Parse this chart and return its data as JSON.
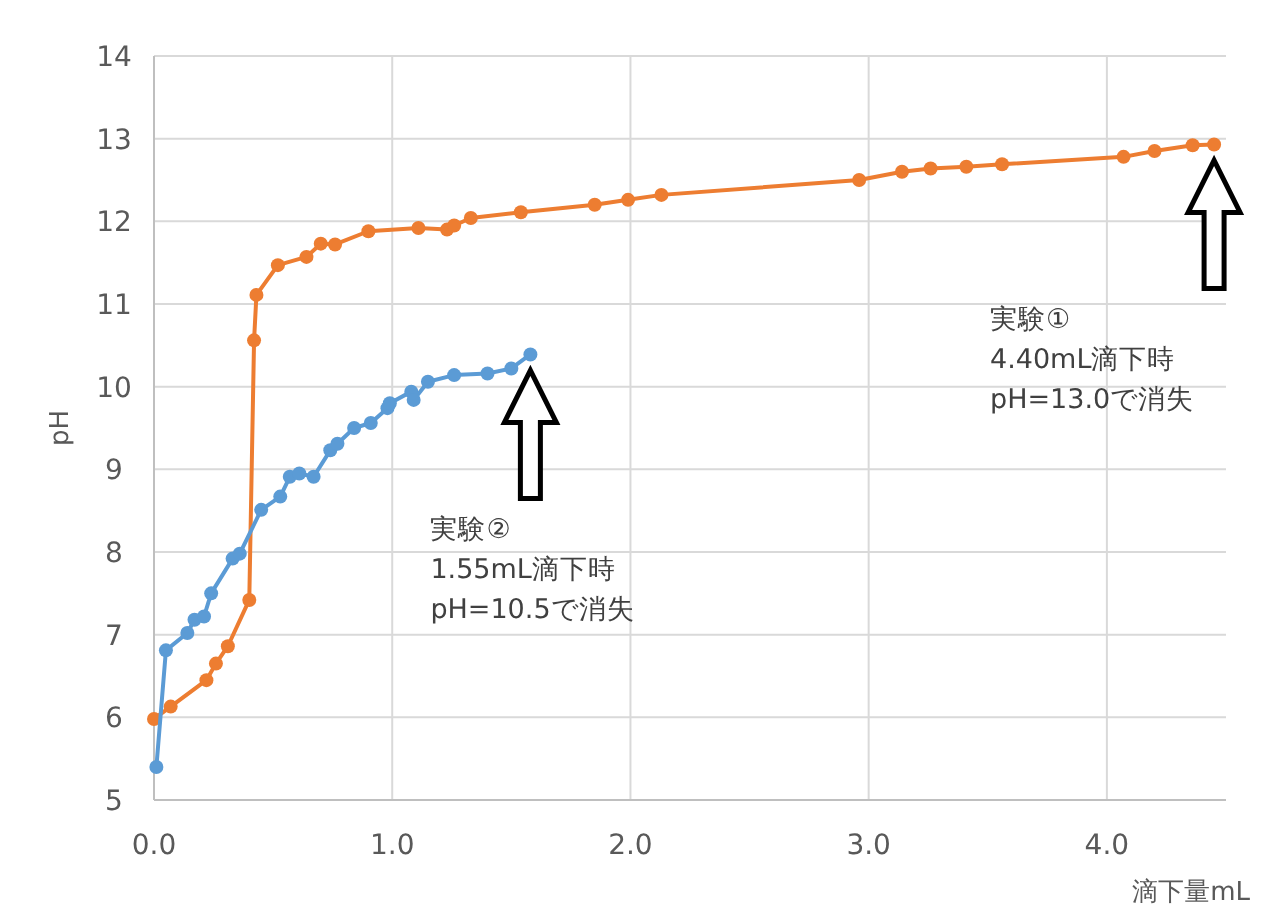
{
  "chart_data": {
    "type": "line",
    "xlabel": "滴下量mL",
    "ylabel": "pH",
    "xlim": [
      0,
      4.5
    ],
    "xticks": [
      {
        "value": 0,
        "label": "0.0"
      },
      {
        "value": 1,
        "label": "1.0"
      },
      {
        "value": 2,
        "label": "2.0"
      },
      {
        "value": 3,
        "label": "3.0"
      },
      {
        "value": 4,
        "label": "4.0"
      }
    ],
    "ylim": [
      5,
      14
    ],
    "yticks": [
      5,
      6,
      7,
      8,
      9,
      10,
      11,
      12,
      13,
      14
    ],
    "grid": true,
    "marker": "circle",
    "line_style": "solid",
    "series": [
      {
        "color": "#ed7d31",
        "x": [
          0.0,
          0.07,
          0.22,
          0.26,
          0.31,
          0.4,
          0.42,
          0.43,
          0.52,
          0.64,
          0.7,
          0.76,
          0.9,
          1.11,
          1.23,
          1.26,
          1.33,
          1.54,
          1.85,
          1.99,
          2.13,
          2.96,
          3.14,
          3.26,
          3.41,
          3.56,
          4.07,
          4.2,
          4.36,
          4.45
        ],
        "values": [
          5.98,
          6.13,
          6.45,
          6.65,
          6.86,
          7.42,
          10.56,
          11.11,
          11.47,
          11.57,
          11.73,
          11.72,
          11.88,
          11.92,
          11.9,
          11.95,
          12.04,
          12.11,
          12.2,
          12.26,
          12.32,
          12.5,
          12.6,
          12.64,
          12.66,
          12.69,
          12.78,
          12.85,
          12.92,
          12.93
        ]
      },
      {
        "color": "#5b9bd5",
        "x": [
          0.01,
          0.05,
          0.14,
          0.17,
          0.21,
          0.24,
          0.33,
          0.36,
          0.45,
          0.53,
          0.57,
          0.61,
          0.67,
          0.74,
          0.77,
          0.84,
          0.91,
          0.98,
          0.99,
          1.08,
          1.09,
          1.15,
          1.26,
          1.4,
          1.5,
          1.58
        ],
        "values": [
          5.4,
          6.81,
          7.02,
          7.18,
          7.22,
          7.5,
          7.92,
          7.98,
          8.51,
          8.67,
          8.91,
          8.95,
          8.91,
          9.23,
          9.31,
          9.5,
          9.56,
          9.74,
          9.8,
          9.94,
          9.84,
          10.06,
          10.14,
          10.16,
          10.22,
          10.39
        ]
      }
    ],
    "annotations": [
      "実験①\n4.40mL滴下時\npH=13.0で消失",
      "実験②\n1.55mL滴下時\npH=10.5で消失"
    ]
  }
}
